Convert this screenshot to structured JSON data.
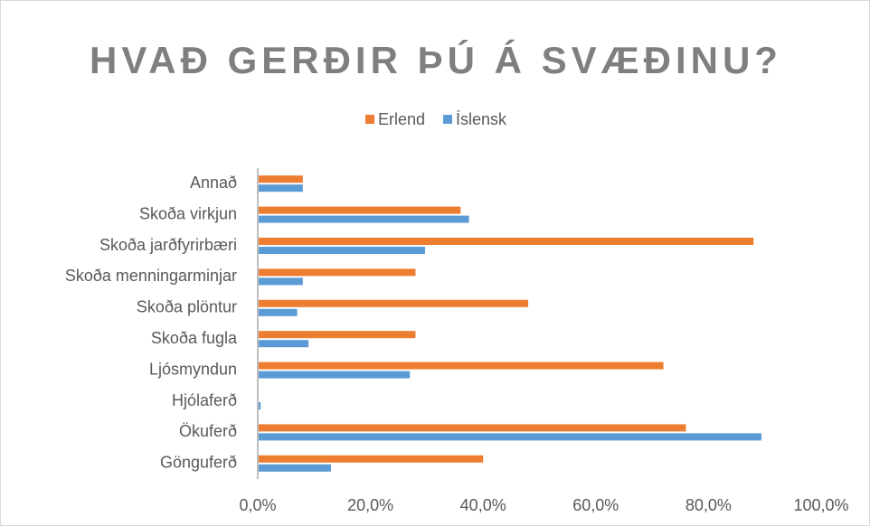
{
  "chart_data": {
    "type": "hbar",
    "title": "HVAÐ GERÐIR ÞÚ Á SVÆÐINU?",
    "categories": [
      "Annað",
      "Skoða virkjun",
      "Skoða jarðfyrirbæri",
      "Skoða menningarminjar",
      "Skoða plöntur",
      "Skoða fugla",
      "Ljósmyndun",
      "Hjólaferð",
      "Ökuferð",
      "Gönguferð"
    ],
    "series": [
      {
        "name": "Erlend",
        "color": "#ed7d31",
        "values": [
          8,
          36,
          88,
          28,
          48,
          28,
          72,
          0,
          76,
          40
        ]
      },
      {
        "name": "Íslensk",
        "color": "#5b9bd5",
        "values": [
          8,
          37.5,
          29.7,
          8,
          7,
          9,
          27,
          0.5,
          89.4,
          13
        ]
      }
    ],
    "xlim": [
      0,
      100
    ],
    "xticks": [
      {
        "value": 0,
        "label": "0,0%"
      },
      {
        "value": 20,
        "label": "20,0%"
      },
      {
        "value": 40,
        "label": "40,0%"
      },
      {
        "value": 60,
        "label": "60,0%"
      },
      {
        "value": 80,
        "label": "80,0%"
      },
      {
        "value": 100,
        "label": "100,0%"
      }
    ],
    "legend": "top"
  }
}
